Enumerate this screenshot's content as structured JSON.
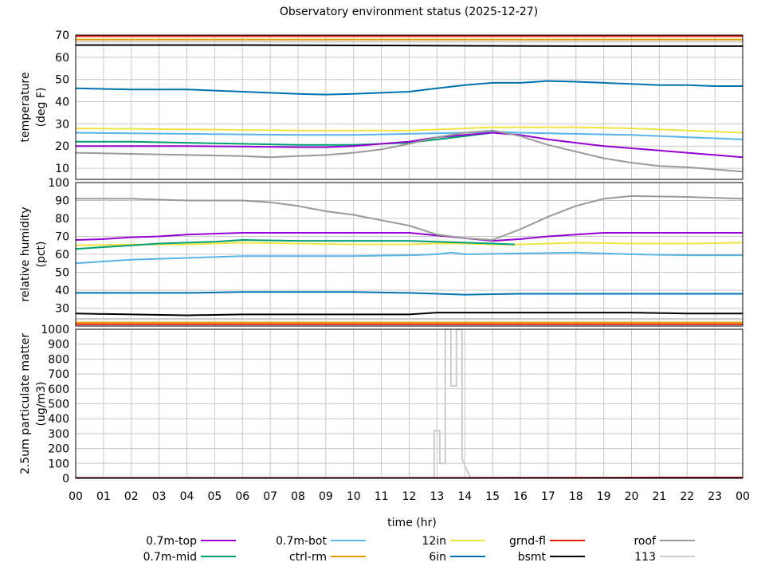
{
  "title": "Observatory environment status (2025-12-27)",
  "chart_data": {
    "type": "line",
    "title": "Observatory environment status (2025-12-27)",
    "xlabel": "time (hr)",
    "x_ticks": [
      "00",
      "01",
      "02",
      "03",
      "04",
      "05",
      "06",
      "07",
      "08",
      "09",
      "10",
      "11",
      "12",
      "13",
      "14",
      "15",
      "16",
      "17",
      "18",
      "19",
      "20",
      "21",
      "22",
      "23",
      "00"
    ],
    "xlim": [
      0,
      24
    ],
    "grid": true,
    "legend_position": "bottom",
    "legend": [
      {
        "name": "0.7m-top",
        "color": "#9400d3"
      },
      {
        "name": "0.7m-bot",
        "color": "#56b4e9"
      },
      {
        "name": "12in",
        "color": "#f0e442"
      },
      {
        "name": "grnd-fl",
        "color": "#e51e10"
      },
      {
        "name": "roof",
        "color": "#999999"
      },
      {
        "name": "0.7m-mid",
        "color": "#009e73"
      },
      {
        "name": "ctrl-rm",
        "color": "#e69f00"
      },
      {
        "name": "6in",
        "color": "#0072b2"
      },
      {
        "name": "bsmt",
        "color": "#000000"
      },
      {
        "name": "113",
        "color": "#cccccc"
      }
    ],
    "panels": [
      {
        "ylabel": [
          "temperature",
          "(deg F)"
        ],
        "ylim": [
          5,
          70
        ],
        "y_ticks": [
          10,
          20,
          30,
          40,
          50,
          60,
          70
        ],
        "series": [
          {
            "name": "grnd-fl",
            "color": "#e51e10",
            "x": [
              0,
              6,
              12,
              18,
              24
            ],
            "y": [
              69.5,
              69.5,
              69.5,
              69.5,
              69.5
            ]
          },
          {
            "name": "ctrl-rm",
            "color": "#e69f00",
            "x": [
              0,
              6,
              12,
              18,
              24
            ],
            "y": [
              68,
              68,
              68,
              68,
              68
            ]
          },
          {
            "name": "113",
            "color": "#cccccc",
            "x": [
              0,
              6,
              12,
              18,
              24
            ],
            "y": [
              67,
              67,
              67,
              67,
              67
            ]
          },
          {
            "name": "bsmt",
            "color": "#000000",
            "x": [
              0,
              6,
              12,
              18,
              24
            ],
            "y": [
              65.5,
              65.5,
              65.3,
              65,
              65
            ]
          },
          {
            "name": "6in",
            "color": "#0072b2",
            "x": [
              0,
              2,
              4,
              6,
              8,
              9,
              10,
              11,
              12,
              13,
              14,
              15,
              16,
              17,
              18,
              19,
              20,
              21,
              22,
              23,
              24
            ],
            "y": [
              46,
              45.5,
              45.5,
              44.5,
              43.5,
              43.2,
              43.5,
              44,
              44.5,
              46,
              47.5,
              48.5,
              48.5,
              49.3,
              49,
              48.5,
              48,
              47.5,
              47.5,
              47,
              47
            ]
          },
          {
            "name": "12in",
            "color": "#f0e442",
            "x": [
              0,
              4,
              8,
              12,
              14,
              15,
              16,
              18,
              20,
              22,
              24
            ],
            "y": [
              28,
              27.5,
              27,
              27,
              28,
              28.5,
              28.5,
              28.5,
              28,
              27,
              26
            ]
          },
          {
            "name": "0.7m-bot",
            "color": "#56b4e9",
            "x": [
              0,
              4,
              8,
              10,
              12,
              14,
              15,
              16,
              18,
              20,
              22,
              24
            ],
            "y": [
              26,
              25.5,
              25,
              25,
              25.5,
              26,
              26.5,
              26,
              25.5,
              25,
              24,
              23
            ]
          },
          {
            "name": "0.7m-mid",
            "color": "#009e73",
            "x": [
              0,
              2,
              4,
              6,
              8,
              10,
              12,
              13,
              14,
              15
            ],
            "y": [
              22,
              22,
              21.5,
              21,
              20.5,
              20.5,
              21.5,
              23,
              24.5,
              26
            ]
          },
          {
            "name": "0.7m-top",
            "color": "#9400d3",
            "x": [
              0,
              2,
              4,
              6,
              8,
              9,
              10,
              11,
              12,
              13,
              14,
              15,
              16,
              17,
              18,
              19,
              20,
              21,
              22,
              23,
              24
            ],
            "y": [
              20,
              20,
              20,
              19.8,
              19.5,
              19.5,
              20,
              21,
              22,
              24,
              25,
              26,
              25,
              23,
              21.5,
              20,
              19,
              18,
              17,
              16,
              15
            ]
          },
          {
            "name": "roof",
            "color": "#999999",
            "x": [
              0,
              2,
              4,
              6,
              7,
              8,
              9,
              10,
              11,
              12,
              13,
              14,
              15,
              16,
              17,
              18,
              19,
              20,
              21,
              22,
              23,
              24
            ],
            "y": [
              17,
              16.5,
              16,
              15.5,
              15,
              15.5,
              16,
              17,
              18.5,
              21,
              24,
              26,
              27,
              24.5,
              20.5,
              17.5,
              14.5,
              12.5,
              11,
              10.5,
              9.5,
              8.5
            ]
          }
        ]
      },
      {
        "ylabel": [
          "relative humidity",
          "(pct)"
        ],
        "ylim": [
          20,
          100
        ],
        "y_ticks": [
          30,
          40,
          50,
          60,
          70,
          80,
          90,
          100
        ],
        "series": [
          {
            "name": "grnd-fl",
            "color": "#e51e10",
            "x": [
              0,
              6,
              12,
              18,
              24
            ],
            "y": [
              21,
              21,
              21,
              21,
              21
            ]
          },
          {
            "name": "ctrl-rm",
            "color": "#e69f00",
            "x": [
              0,
              6,
              12,
              18,
              24
            ],
            "y": [
              22,
              22,
              22,
              22,
              22
            ]
          },
          {
            "name": "113",
            "color": "#cccccc",
            "x": [
              0,
              6,
              12,
              18,
              24
            ],
            "y": [
              24,
              24,
              24,
              24,
              24
            ]
          },
          {
            "name": "bsmt",
            "color": "#000000",
            "x": [
              0,
              2,
              4,
              6,
              8,
              10,
              12,
              13,
              14,
              16,
              18,
              20,
              22,
              24
            ],
            "y": [
              27,
              26.5,
              26,
              26.5,
              26.5,
              26.5,
              26.5,
              27.5,
              27.5,
              27.5,
              27.5,
              27.5,
              27,
              27
            ]
          },
          {
            "name": "6in",
            "color": "#0072b2",
            "x": [
              0,
              2,
              4,
              6,
              8,
              10,
              12,
              13,
              14,
              16,
              18,
              20,
              22,
              24
            ],
            "y": [
              38.5,
              38.5,
              38.5,
              39,
              39,
              39,
              38.5,
              38,
              37.5,
              38,
              38,
              38,
              38,
              38
            ]
          },
          {
            "name": "0.7m-bot",
            "color": "#56b4e9",
            "x": [
              0,
              1,
              2,
              3,
              4,
              6,
              8,
              10,
              12,
              13,
              13.5,
              14,
              16,
              18,
              20,
              22,
              24
            ],
            "y": [
              55,
              56,
              57,
              57.5,
              58,
              59,
              59,
              59,
              59.5,
              60,
              61,
              60,
              60.5,
              61,
              60,
              59.5,
              59.5
            ]
          },
          {
            "name": "12in",
            "color": "#f0e442",
            "x": [
              0,
              2,
              4,
              6,
              8,
              10,
              12,
              13,
              14,
              15,
              16,
              18,
              20,
              22,
              24
            ],
            "y": [
              65,
              65.5,
              65.5,
              66.5,
              66,
              65.5,
              65.5,
              66,
              66,
              65.5,
              65.5,
              66.5,
              66,
              66,
              66.5
            ]
          },
          {
            "name": "0.7m-mid",
            "color": "#009e73",
            "x": [
              0,
              1,
              2,
              3,
              4,
              5,
              6,
              8,
              10,
              12,
              13,
              14,
              15,
              15.8
            ],
            "y": [
              63,
              64,
              65,
              66,
              66.5,
              67,
              68,
              67.5,
              67.5,
              67.5,
              67,
              66.5,
              66,
              65.5
            ]
          },
          {
            "name": "0.7m-top",
            "color": "#9400d3",
            "x": [
              0,
              1,
              2,
              3,
              4,
              5,
              6,
              8,
              10,
              12,
              13,
              14,
              15,
              16,
              17,
              18,
              19,
              20,
              22,
              24
            ],
            "y": [
              68,
              68.5,
              69.5,
              70,
              71,
              71.5,
              72,
              72,
              72,
              72,
              70.5,
              69,
              67.5,
              68.5,
              70,
              71,
              72,
              72,
              72,
              72
            ]
          },
          {
            "name": "roof",
            "color": "#999999",
            "x": [
              0,
              2,
              4,
              6,
              7,
              8,
              9,
              10,
              11,
              12,
              13,
              14,
              15,
              16,
              17,
              18,
              19,
              20,
              22,
              24
            ],
            "y": [
              91,
              91,
              90,
              90,
              89,
              87,
              84,
              82,
              79,
              76,
              71,
              69,
              68,
              74,
              81,
              87,
              91,
              92.5,
              92,
              91
            ]
          }
        ]
      },
      {
        "ylabel": [
          "2.5um particulate matter",
          "(ug/m3)"
        ],
        "ylim": [
          0,
          1000
        ],
        "y_ticks": [
          0,
          100,
          200,
          300,
          400,
          500,
          600,
          700,
          800,
          900,
          1000
        ],
        "series": [
          {
            "name": "113",
            "color": "#cccccc",
            "x": [
              0,
              12.9,
              12.9,
              13.1,
              13.1,
              13.3,
              13.3,
              13.5,
              13.5,
              13.7,
              13.7,
              13.9,
              13.9,
              14.2,
              24
            ],
            "y": [
              2,
              2,
              320,
              320,
              100,
              100,
              1000,
              1000,
              620,
              620,
              1000,
              1000,
              130,
              5,
              2
            ]
          },
          {
            "name": "grnd-fl",
            "color": "#e51e10",
            "x": [
              0,
              12,
              19,
              21,
              24
            ],
            "y": [
              3,
              3,
              5,
              6,
              6
            ]
          },
          {
            "name": "bsmt",
            "color": "#000000",
            "x": [
              0,
              12,
              24
            ],
            "y": [
              1,
              1,
              1
            ]
          }
        ]
      }
    ]
  }
}
